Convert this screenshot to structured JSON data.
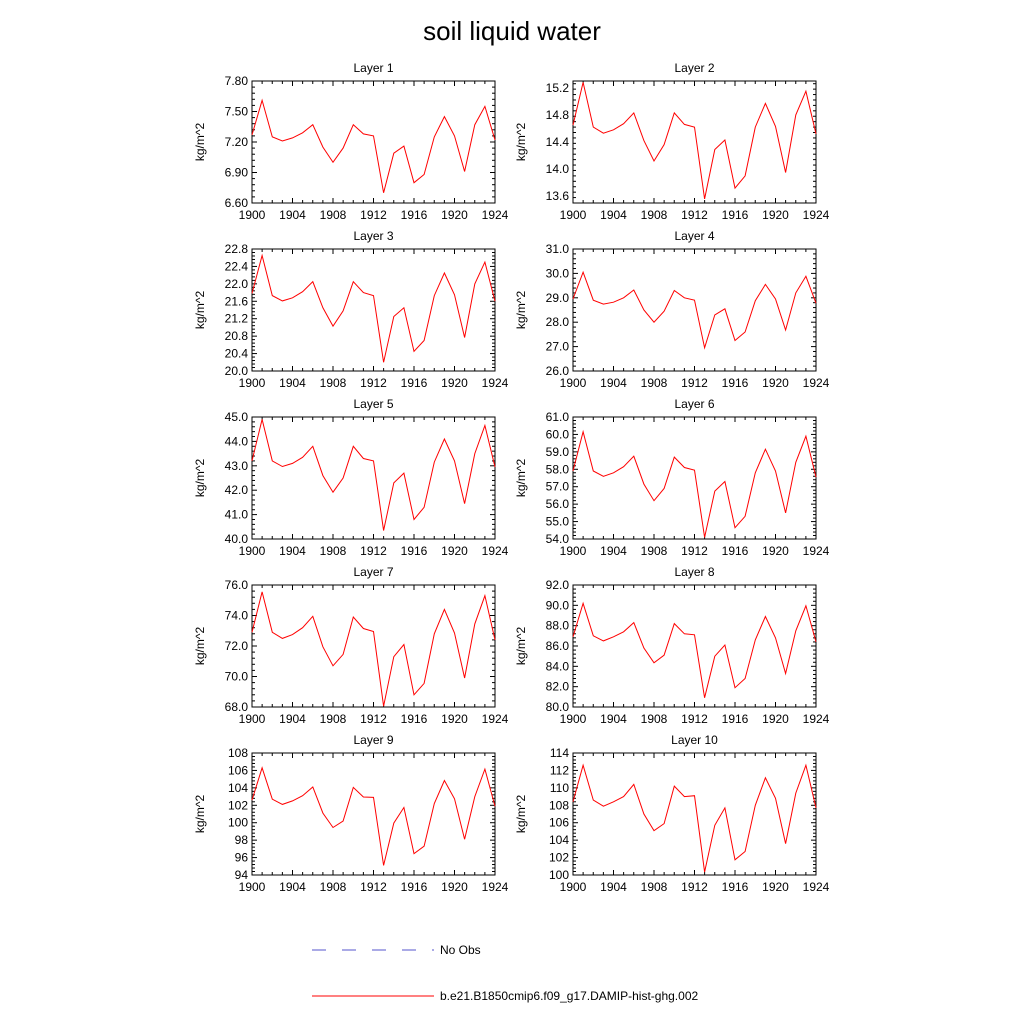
{
  "figure": {
    "title": "soil liquid water"
  },
  "legend": [
    {
      "label": "No Obs",
      "color": "#5555cc",
      "style": "dashed"
    },
    {
      "label": "b.e21.B1850cmip6.f09_g17.DAMIP-hist-ghg.002",
      "color": "#ff0000",
      "style": "solid"
    }
  ],
  "chart_data": [
    {
      "type": "line",
      "title": "Layer 1",
      "ylabel": "kg/m^2",
      "xlim": [
        1900,
        1924
      ],
      "xticks": [
        1900,
        1904,
        1908,
        1912,
        1916,
        1920,
        1924
      ],
      "ylim": [
        6.6,
        7.8
      ],
      "yticks": [
        "6.60",
        "6.90",
        "7.20",
        "7.50",
        "7.80"
      ],
      "x": [
        1900,
        1901,
        1902,
        1903,
        1904,
        1905,
        1906,
        1907,
        1908,
        1909,
        1910,
        1911,
        1912,
        1913,
        1914,
        1915,
        1916,
        1917,
        1918,
        1919,
        1920,
        1921,
        1922,
        1923,
        1924
      ],
      "series": [
        {
          "name": "b.e21.B1850cmip6.f09_g17.DAMIP-hist-ghg.002",
          "values": [
            7.27,
            7.61,
            7.25,
            7.21,
            7.24,
            7.29,
            7.37,
            7.15,
            7.0,
            7.14,
            7.37,
            7.28,
            7.26,
            6.7,
            7.09,
            7.16,
            6.8,
            6.88,
            7.25,
            7.45,
            7.26,
            6.91,
            7.37,
            7.55,
            7.22
          ]
        }
      ]
    },
    {
      "type": "line",
      "title": "Layer 2",
      "ylabel": "kg/m^2",
      "xlim": [
        1900,
        1924
      ],
      "xticks": [
        1900,
        1904,
        1908,
        1912,
        1916,
        1920,
        1924
      ],
      "ylim": [
        13.5,
        15.3
      ],
      "yticks": [
        "13.6",
        "14.0",
        "14.4",
        "14.8",
        "15.2"
      ],
      "x": [
        1900,
        1901,
        1902,
        1903,
        1904,
        1905,
        1906,
        1907,
        1908,
        1909,
        1910,
        1911,
        1912,
        1913,
        1914,
        1915,
        1916,
        1917,
        1918,
        1919,
        1920,
        1921,
        1922,
        1923,
        1924
      ],
      "series": [
        {
          "name": "b.e21.B1850cmip6.f09_g17.DAMIP-hist-ghg.002",
          "values": [
            14.65,
            15.28,
            14.62,
            14.53,
            14.58,
            14.67,
            14.83,
            14.42,
            14.12,
            14.36,
            14.83,
            14.66,
            14.62,
            13.56,
            14.29,
            14.43,
            13.72,
            13.9,
            14.62,
            14.97,
            14.63,
            13.95,
            14.8,
            15.15,
            14.52
          ]
        }
      ]
    },
    {
      "type": "line",
      "title": "Layer 3",
      "ylabel": "kg/m^2",
      "xlim": [
        1900,
        1924
      ],
      "xticks": [
        1900,
        1904,
        1908,
        1912,
        1916,
        1920,
        1924
      ],
      "ylim": [
        20.0,
        22.8
      ],
      "yticks": [
        "20.0",
        "20.4",
        "20.8",
        "21.2",
        "21.6",
        "22.0",
        "22.4",
        "22.8"
      ],
      "x": [
        1900,
        1901,
        1902,
        1903,
        1904,
        1905,
        1906,
        1907,
        1908,
        1909,
        1910,
        1911,
        1912,
        1913,
        1914,
        1915,
        1916,
        1917,
        1918,
        1919,
        1920,
        1921,
        1922,
        1923,
        1924
      ],
      "series": [
        {
          "name": "b.e21.B1850cmip6.f09_g17.DAMIP-hist-ghg.002",
          "values": [
            21.78,
            22.65,
            21.73,
            21.61,
            21.68,
            21.82,
            22.05,
            21.45,
            21.03,
            21.38,
            22.05,
            21.8,
            21.73,
            20.2,
            21.25,
            21.45,
            20.45,
            20.7,
            21.73,
            22.25,
            21.75,
            20.77,
            22.0,
            22.5,
            21.6
          ]
        }
      ]
    },
    {
      "type": "line",
      "title": "Layer 4",
      "ylabel": "kg/m^2",
      "xlim": [
        1900,
        1924
      ],
      "xticks": [
        1900,
        1904,
        1908,
        1912,
        1916,
        1920,
        1924
      ],
      "ylim": [
        26.0,
        31.0
      ],
      "yticks": [
        "26.0",
        "27.0",
        "28.0",
        "29.0",
        "30.0",
        "31.0"
      ],
      "x": [
        1900,
        1901,
        1902,
        1903,
        1904,
        1905,
        1906,
        1907,
        1908,
        1909,
        1910,
        1911,
        1912,
        1913,
        1914,
        1915,
        1916,
        1917,
        1918,
        1919,
        1920,
        1921,
        1922,
        1923,
        1924
      ],
      "series": [
        {
          "name": "b.e21.B1850cmip6.f09_g17.DAMIP-hist-ghg.002",
          "values": [
            28.95,
            30.05,
            28.9,
            28.74,
            28.82,
            29.0,
            29.32,
            28.5,
            28.0,
            28.45,
            29.3,
            29.0,
            28.9,
            26.95,
            28.3,
            28.55,
            27.25,
            27.6,
            28.88,
            29.55,
            28.95,
            27.68,
            29.2,
            29.88,
            28.78
          ]
        }
      ]
    },
    {
      "type": "line",
      "title": "Layer 5",
      "ylabel": "kg/m^2",
      "xlim": [
        1900,
        1924
      ],
      "xticks": [
        1900,
        1904,
        1908,
        1912,
        1916,
        1920,
        1924
      ],
      "ylim": [
        40.0,
        45.0
      ],
      "yticks": [
        "40.0",
        "41.0",
        "42.0",
        "43.0",
        "44.0",
        "45.0"
      ],
      "x": [
        1900,
        1901,
        1902,
        1903,
        1904,
        1905,
        1906,
        1907,
        1908,
        1909,
        1910,
        1911,
        1912,
        1913,
        1914,
        1915,
        1916,
        1917,
        1918,
        1919,
        1920,
        1921,
        1922,
        1923,
        1924
      ],
      "series": [
        {
          "name": "b.e21.B1850cmip6.f09_g17.DAMIP-hist-ghg.002",
          "values": [
            43.2,
            44.9,
            43.2,
            42.97,
            43.1,
            43.35,
            43.8,
            42.6,
            41.92,
            42.5,
            43.8,
            43.3,
            43.2,
            40.35,
            42.3,
            42.7,
            40.8,
            41.3,
            43.15,
            44.1,
            43.2,
            41.45,
            43.5,
            44.65,
            42.95
          ]
        }
      ]
    },
    {
      "type": "line",
      "title": "Layer 6",
      "ylabel": "kg/m^2",
      "xlim": [
        1900,
        1924
      ],
      "xticks": [
        1900,
        1904,
        1908,
        1912,
        1916,
        1920,
        1924
      ],
      "ylim": [
        54.0,
        61.0
      ],
      "yticks": [
        "54.0",
        "55.0",
        "56.0",
        "57.0",
        "58.0",
        "59.0",
        "60.0",
        "61.0"
      ],
      "x": [
        1900,
        1901,
        1902,
        1903,
        1904,
        1905,
        1906,
        1907,
        1908,
        1909,
        1910,
        1911,
        1912,
        1913,
        1914,
        1915,
        1916,
        1917,
        1918,
        1919,
        1920,
        1921,
        1922,
        1923,
        1924
      ],
      "series": [
        {
          "name": "b.e21.B1850cmip6.f09_g17.DAMIP-hist-ghg.002",
          "values": [
            57.9,
            60.15,
            57.9,
            57.6,
            57.8,
            58.15,
            58.75,
            57.15,
            56.2,
            56.9,
            58.7,
            58.1,
            57.95,
            54.1,
            56.75,
            57.3,
            54.65,
            55.3,
            57.8,
            59.15,
            57.9,
            55.5,
            58.4,
            59.9,
            57.55
          ]
        }
      ]
    },
    {
      "type": "line",
      "title": "Layer 7",
      "ylabel": "kg/m^2",
      "xlim": [
        1900,
        1924
      ],
      "xticks": [
        1900,
        1904,
        1908,
        1912,
        1916,
        1920,
        1924
      ],
      "ylim": [
        68.0,
        76.0
      ],
      "yticks": [
        "68.0",
        "70.0",
        "72.0",
        "74.0",
        "76.0"
      ],
      "x": [
        1900,
        1901,
        1902,
        1903,
        1904,
        1905,
        1906,
        1907,
        1908,
        1909,
        1910,
        1911,
        1912,
        1913,
        1914,
        1915,
        1916,
        1917,
        1918,
        1919,
        1920,
        1921,
        1922,
        1923,
        1924
      ],
      "series": [
        {
          "name": "b.e21.B1850cmip6.f09_g17.DAMIP-hist-ghg.002",
          "values": [
            72.9,
            75.55,
            72.9,
            72.5,
            72.75,
            73.2,
            73.95,
            71.95,
            70.7,
            71.45,
            73.9,
            73.15,
            72.95,
            68.05,
            71.3,
            72.1,
            68.8,
            69.55,
            72.8,
            74.4,
            72.85,
            69.9,
            73.45,
            75.3,
            72.4
          ]
        }
      ]
    },
    {
      "type": "line",
      "title": "Layer 8",
      "ylabel": "kg/m^2",
      "xlim": [
        1900,
        1924
      ],
      "xticks": [
        1900,
        1904,
        1908,
        1912,
        1916,
        1920,
        1924
      ],
      "ylim": [
        80.0,
        92.0
      ],
      "yticks": [
        "80.0",
        "82.0",
        "84.0",
        "86.0",
        "88.0",
        "90.0",
        "92.0"
      ],
      "x": [
        1900,
        1901,
        1902,
        1903,
        1904,
        1905,
        1906,
        1907,
        1908,
        1909,
        1910,
        1911,
        1912,
        1913,
        1914,
        1915,
        1916,
        1917,
        1918,
        1919,
        1920,
        1921,
        1922,
        1923,
        1924
      ],
      "series": [
        {
          "name": "b.e21.B1850cmip6.f09_g17.DAMIP-hist-ghg.002",
          "values": [
            86.9,
            90.2,
            87.0,
            86.5,
            86.9,
            87.4,
            88.3,
            85.8,
            84.35,
            85.1,
            88.2,
            87.2,
            87.1,
            80.9,
            85.0,
            86.1,
            81.9,
            82.8,
            86.6,
            88.9,
            86.8,
            83.3,
            87.5,
            89.95,
            86.4
          ]
        }
      ]
    },
    {
      "type": "line",
      "title": "Layer 9",
      "ylabel": "kg/m^2",
      "xlim": [
        1900,
        1924
      ],
      "xticks": [
        1900,
        1904,
        1908,
        1912,
        1916,
        1920,
        1924
      ],
      "ylim": [
        94,
        108
      ],
      "yticks": [
        "94",
        "96",
        "98",
        "100",
        "102",
        "104",
        "106",
        "108"
      ],
      "x": [
        1900,
        1901,
        1902,
        1903,
        1904,
        1905,
        1906,
        1907,
        1908,
        1909,
        1910,
        1911,
        1912,
        1913,
        1914,
        1915,
        1916,
        1917,
        1918,
        1919,
        1920,
        1921,
        1922,
        1923,
        1924
      ],
      "series": [
        {
          "name": "b.e21.B1850cmip6.f09_g17.DAMIP-hist-ghg.002",
          "values": [
            102.6,
            106.3,
            102.7,
            102.1,
            102.5,
            103.1,
            104.1,
            101.1,
            99.45,
            100.2,
            104.05,
            102.95,
            102.9,
            95.1,
            99.95,
            101.75,
            96.45,
            97.3,
            102.2,
            104.85,
            102.75,
            98.1,
            103.0,
            106.15,
            101.9
          ]
        }
      ]
    },
    {
      "type": "line",
      "title": "Layer 10",
      "ylabel": "kg/m^2",
      "xlim": [
        1900,
        1924
      ],
      "xticks": [
        1900,
        1904,
        1908,
        1912,
        1916,
        1920,
        1924
      ],
      "ylim": [
        100,
        114
      ],
      "yticks": [
        "100",
        "102",
        "104",
        "106",
        "108",
        "110",
        "112",
        "114"
      ],
      "x": [
        1900,
        1901,
        1902,
        1903,
        1904,
        1905,
        1906,
        1907,
        1908,
        1909,
        1910,
        1911,
        1912,
        1913,
        1914,
        1915,
        1916,
        1917,
        1918,
        1919,
        1920,
        1921,
        1922,
        1923,
        1924
      ],
      "series": [
        {
          "name": "b.e21.B1850cmip6.f09_g17.DAMIP-hist-ghg.002",
          "values": [
            108.4,
            112.6,
            108.6,
            107.9,
            108.4,
            109.0,
            110.4,
            107.0,
            105.1,
            105.9,
            110.2,
            109.0,
            109.1,
            100.35,
            105.7,
            107.7,
            101.75,
            102.7,
            108.0,
            111.15,
            108.8,
            103.6,
            109.4,
            112.6,
            107.7
          ]
        }
      ]
    }
  ]
}
